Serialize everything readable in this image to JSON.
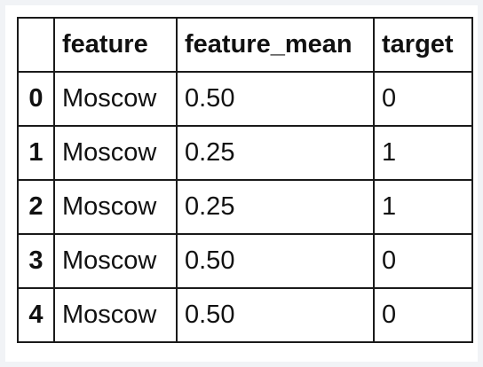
{
  "table": {
    "columns": [
      "feature",
      "feature_mean",
      "target"
    ],
    "rows": [
      {
        "index": "0",
        "feature": "Moscow",
        "feature_mean": "0.50",
        "target": "0"
      },
      {
        "index": "1",
        "feature": "Moscow",
        "feature_mean": "0.25",
        "target": "1"
      },
      {
        "index": "2",
        "feature": "Moscow",
        "feature_mean": "0.25",
        "target": "1"
      },
      {
        "index": "3",
        "feature": "Moscow",
        "feature_mean": "0.50",
        "target": "0"
      },
      {
        "index": "4",
        "feature": "Moscow",
        "feature_mean": "0.50",
        "target": "0"
      }
    ]
  }
}
